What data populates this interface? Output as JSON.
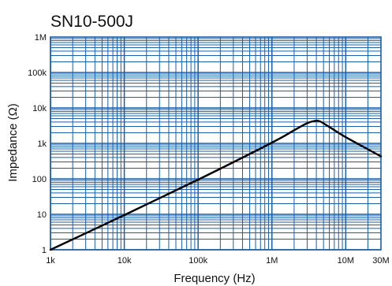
{
  "chart_data": {
    "type": "line",
    "title": "SN10-500J",
    "xlabel": "Frequency (Hz)",
    "ylabel": "Impedance (Ω)",
    "x_scale": "log",
    "y_scale": "log",
    "xlim": [
      1000,
      30000000
    ],
    "ylim": [
      1,
      1000000
    ],
    "x_ticks": [
      {
        "value": 1000,
        "label": "1k"
      },
      {
        "value": 10000,
        "label": "10k"
      },
      {
        "value": 100000,
        "label": "100k"
      },
      {
        "value": 1000000,
        "label": "1M"
      },
      {
        "value": 10000000,
        "label": "10M"
      },
      {
        "value": 30000000,
        "label": "30M"
      }
    ],
    "y_ticks": [
      {
        "value": 1,
        "label": "1"
      },
      {
        "value": 10,
        "label": "10"
      },
      {
        "value": 100,
        "label": "100"
      },
      {
        "value": 1000,
        "label": "1k"
      },
      {
        "value": 10000,
        "label": "10k"
      },
      {
        "value": 100000,
        "label": "100k"
      },
      {
        "value": 1000000,
        "label": "1M"
      }
    ],
    "grid": true,
    "grid_color": "#1a5fa8",
    "line_color": "#000000",
    "series": [
      {
        "points": [
          [
            1000,
            0.95
          ],
          [
            10000,
            9.5
          ],
          [
            100000,
            95
          ],
          [
            1000000,
            1050
          ],
          [
            2000000,
            2350
          ],
          [
            3000000,
            3700
          ],
          [
            3800000,
            4300
          ],
          [
            4500000,
            4150
          ],
          [
            6000000,
            2900
          ],
          [
            10000000,
            1500
          ],
          [
            20000000,
            680
          ],
          [
            30000000,
            430
          ]
        ]
      }
    ]
  }
}
